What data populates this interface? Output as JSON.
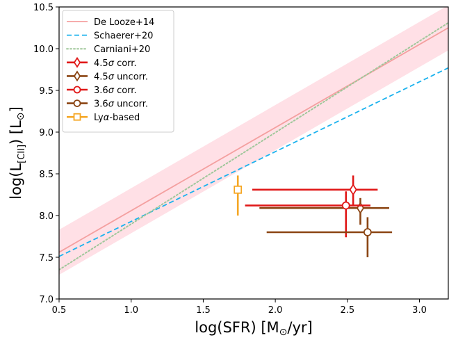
{
  "chart_data": {
    "type": "scatter",
    "x_axis": {
      "label_main": "log(SFR) [M",
      "label_sub": "⊙",
      "label_end": "/yr]",
      "range": [
        0.5,
        3.2
      ],
      "ticks": [
        0.5,
        1.0,
        1.5,
        2.0,
        2.5,
        3.0
      ],
      "tick_labels": [
        "0.5",
        "1.0",
        "1.5",
        "2.0",
        "2.5",
        "3.0"
      ]
    },
    "y_axis": {
      "label_main": "log(L",
      "label_sub": "[CII]",
      "label_mid": ") [L",
      "label_sub2": "⊙",
      "label_end": "]",
      "range": [
        7.0,
        10.5
      ],
      "ticks": [
        7.0,
        7.5,
        8.0,
        8.5,
        9.0,
        9.5,
        10.0,
        10.5
      ],
      "tick_labels": [
        "7.0",
        "7.5",
        "8.0",
        "8.5",
        "9.0",
        "9.5",
        "10.0",
        "10.5"
      ]
    },
    "relations": [
      {
        "name": "De Looze+14",
        "color": "#f4a0a0",
        "style": "solid",
        "x": [
          0.5,
          3.2
        ],
        "y": [
          7.56,
          10.25
        ],
        "band": {
          "color": "#ffe0e6",
          "lower": [
            7.29,
            9.98
          ],
          "upper": [
            7.83,
            10.52
          ]
        }
      },
      {
        "name": "Schaerer+20",
        "color": "#1ab2ee",
        "style": "dashed",
        "x": [
          0.5,
          3.2
        ],
        "y": [
          7.51,
          9.77
        ]
      },
      {
        "name": "Carniani+20",
        "color": "#9fc79a",
        "style": "dotted",
        "x": [
          0.5,
          3.2
        ],
        "y": [
          7.35,
          10.31
        ]
      }
    ],
    "points": [
      {
        "name": "4.5σ corr.",
        "legend_main": "4.5",
        "legend_end": " corr.",
        "marker": "diamond",
        "color": "#e01818",
        "x": 2.54,
        "y": 8.31,
        "xerr": [
          0.7,
          0.17
        ],
        "yerr": [
          0.2,
          0.17
        ]
      },
      {
        "name": "4.5σ uncorr.",
        "legend_main": "4.5",
        "legend_end": " uncorr.",
        "marker": "diamond",
        "color": "#8b4513",
        "x": 2.59,
        "y": 8.09,
        "xerr": [
          0.7,
          0.2
        ],
        "yerr": [
          0.2,
          0.12
        ]
      },
      {
        "name": "3.6σ corr.",
        "legend_main": "3.6",
        "legend_end": " corr.",
        "marker": "circle",
        "color": "#e01818",
        "x": 2.49,
        "y": 8.12,
        "xerr": [
          0.7,
          0.17
        ],
        "yerr": [
          0.38,
          0.17
        ]
      },
      {
        "name": "3.6σ uncorr.",
        "legend_main": "3.6",
        "legend_end": " uncorr.",
        "marker": "circle",
        "color": "#8b4513",
        "x": 2.64,
        "y": 7.8,
        "xerr": [
          0.7,
          0.17
        ],
        "yerr": [
          0.3,
          0.18
        ]
      },
      {
        "name": "Lyα-based",
        "legend_main": "Ly",
        "legend_end": "-based",
        "marker": "square",
        "color": "#f5a623",
        "x": 1.74,
        "y": 8.31,
        "xerr": [
          0,
          0
        ],
        "yerr": [
          0.31,
          0.17
        ]
      }
    ],
    "legend": {
      "position": "top-left"
    },
    "grid": false
  }
}
